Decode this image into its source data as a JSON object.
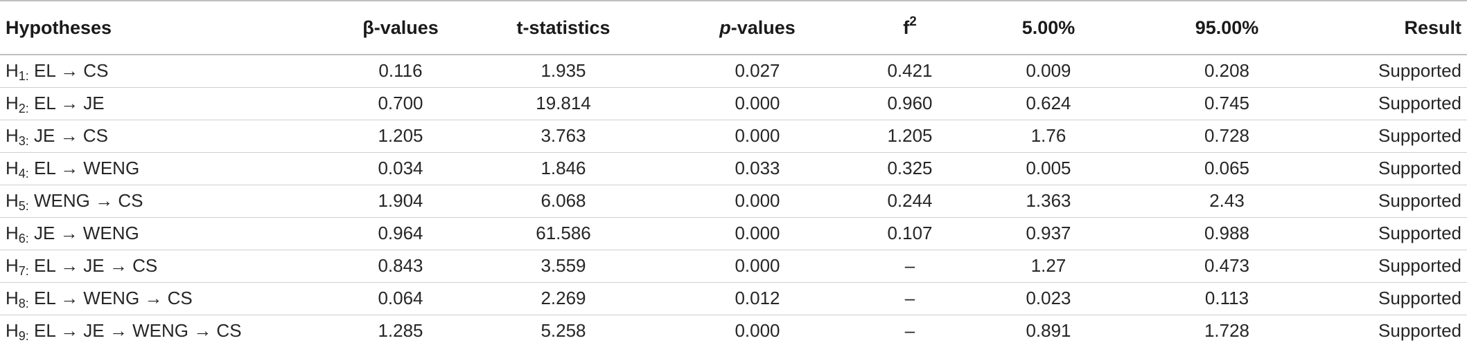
{
  "table": {
    "headers": {
      "hypotheses": "Hypotheses",
      "beta": "β-values",
      "t_stat": "t-statistics",
      "p_italic": "p",
      "p_rest": "-values",
      "f_base": "f",
      "f_sup": "2",
      "ci_low": "5.00%",
      "ci_high": "95.00%",
      "result": "Result"
    },
    "rows": [
      {
        "h": "H",
        "sub": "1:",
        "path": " EL → CS",
        "beta": "0.116",
        "t": "1.935",
        "p": "0.027",
        "f2": "0.421",
        "lo": "0.009",
        "hi": "0.208",
        "result": "Supported"
      },
      {
        "h": "H",
        "sub": "2:",
        "path": " EL → JE",
        "beta": "0.700",
        "t": "19.814",
        "p": "0.000",
        "f2": "0.960",
        "lo": "0.624",
        "hi": "0.745",
        "result": "Supported"
      },
      {
        "h": "H",
        "sub": "3:",
        "path": " JE → CS",
        "beta": "1.205",
        "t": "3.763",
        "p": "0.000",
        "f2": "1.205",
        "lo": "1.76",
        "hi": "0.728",
        "result": "Supported"
      },
      {
        "h": "H",
        "sub": "4:",
        "path": " EL → WENG",
        "beta": "0.034",
        "t": "1.846",
        "p": "0.033",
        "f2": "0.325",
        "lo": "0.005",
        "hi": "0.065",
        "result": "Supported"
      },
      {
        "h": "H",
        "sub": "5:",
        "path": " WENG → CS",
        "beta": "1.904",
        "t": "6.068",
        "p": "0.000",
        "f2": "0.244",
        "lo": "1.363",
        "hi": "2.43",
        "result": "Supported"
      },
      {
        "h": "H",
        "sub": "6:",
        "path": " JE → WENG",
        "beta": "0.964",
        "t": "61.586",
        "p": "0.000",
        "f2": "0.107",
        "lo": "0.937",
        "hi": "0.988",
        "result": "Supported"
      },
      {
        "h": "H",
        "sub": "7:",
        "path": " EL → JE → CS",
        "beta": "0.843",
        "t": "3.559",
        "p": "0.000",
        "f2": "–",
        "lo": "1.27",
        "hi": "0.473",
        "result": "Supported"
      },
      {
        "h": "H",
        "sub": "8:",
        "path": " EL → WENG → CS",
        "beta": "0.064",
        "t": "2.269",
        "p": "0.012",
        "f2": "–",
        "lo": "0.023",
        "hi": "0.113",
        "result": "Supported"
      },
      {
        "h": "H",
        "sub": "9:",
        "path": " EL → JE → WENG → CS",
        "beta": "1.285",
        "t": "5.258",
        "p": "0.000",
        "f2": "–",
        "lo": "0.891",
        "hi": "1.728",
        "result": "Supported"
      }
    ]
  }
}
